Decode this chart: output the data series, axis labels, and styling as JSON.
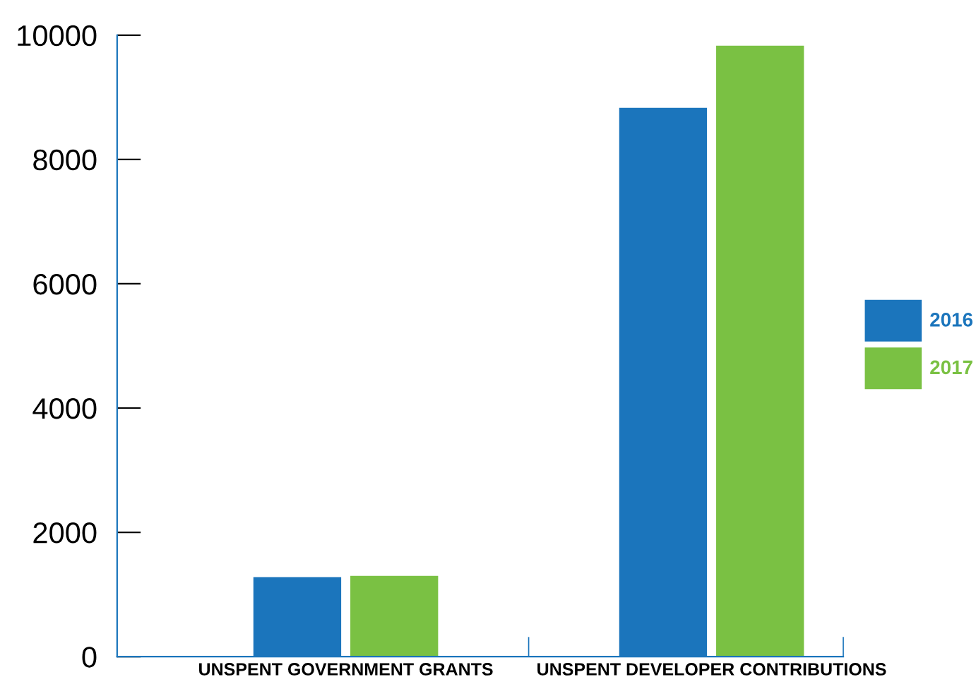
{
  "chart_data": {
    "type": "bar",
    "categories": [
      "UNSPENT GOVERNMENT GRANTS",
      "UNSPENT DEVELOPER CONTRIBUTIONS"
    ],
    "series": [
      {
        "name": "2016",
        "color": "#1b75bc",
        "values": [
          1280,
          8830
        ]
      },
      {
        "name": "2017",
        "color": "#7ac143",
        "values": [
          1300,
          9830
        ]
      }
    ],
    "ylim": [
      0,
      10000
    ],
    "yticks": [
      0,
      2000,
      4000,
      6000,
      8000,
      10000
    ],
    "grid": false,
    "legend": "right"
  }
}
